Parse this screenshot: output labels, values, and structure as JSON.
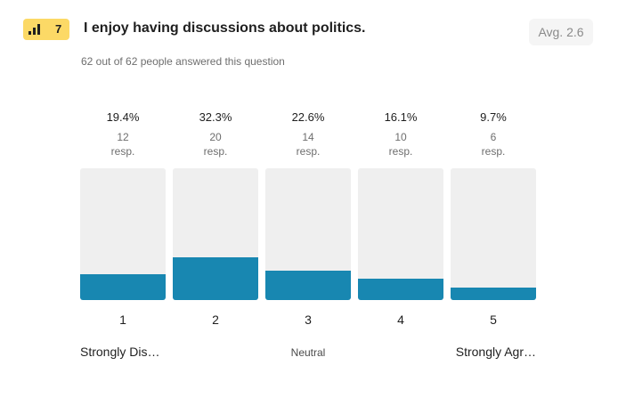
{
  "question": {
    "number": "7",
    "icon": "bar-chart-icon",
    "title": "I enjoy having discussions about politics.",
    "average_label": "Avg. 2.6",
    "answered_text": "62 out of 62 people answered this question"
  },
  "colors": {
    "bar_fill": "#1887b1",
    "bar_track": "#efefef",
    "badge": "#fcd966"
  },
  "chart_data": {
    "type": "bar",
    "categories": [
      "1",
      "2",
      "3",
      "4",
      "5"
    ],
    "percent_labels": [
      "19.4%",
      "32.3%",
      "22.6%",
      "16.1%",
      "9.7%"
    ],
    "values": [
      19.4,
      32.3,
      22.6,
      16.1,
      9.7
    ],
    "counts": [
      "12",
      "20",
      "14",
      "10",
      "6"
    ],
    "count_unit": "resp.",
    "ylim": [
      0,
      100
    ],
    "scale_labels": {
      "low": "Strongly Dis…",
      "mid": "Neutral",
      "high": "Strongly Agr…"
    }
  }
}
